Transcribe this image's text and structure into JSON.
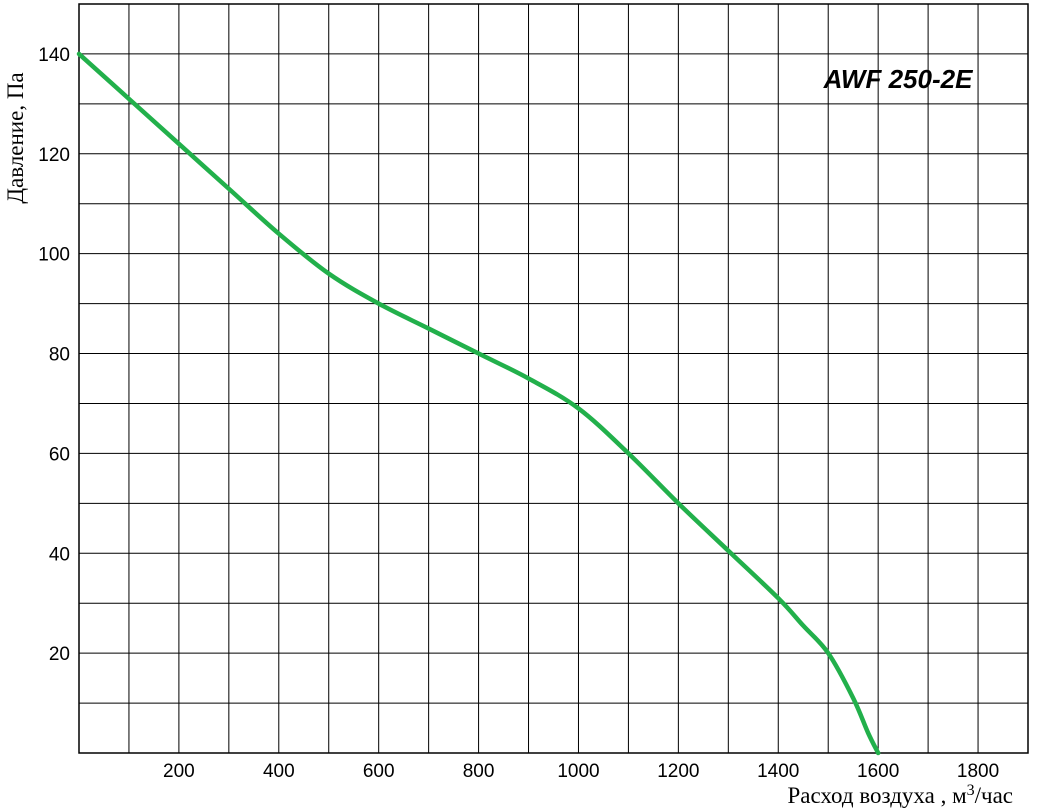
{
  "chart_data": {
    "type": "line",
    "title": "",
    "annotation": "AWF 250-2E",
    "xlabel": "Расход воздуха , м3/час",
    "xlabel_parts": {
      "prefix": "Расход воздуха , м",
      "superscript": "3",
      "suffix": "/час"
    },
    "ylabel": "Давление, Па",
    "xlim": [
      0,
      1900
    ],
    "ylim": [
      0,
      150
    ],
    "x_ticks": [
      200,
      400,
      600,
      800,
      1000,
      1200,
      1400,
      1600,
      1800
    ],
    "y_ticks": [
      20,
      40,
      60,
      80,
      100,
      120,
      140
    ],
    "grid": true,
    "series": [
      {
        "color": "#22b04b",
        "points": [
          {
            "x": 0,
            "y": 140
          },
          {
            "x": 100,
            "y": 131
          },
          {
            "x": 200,
            "y": 122
          },
          {
            "x": 300,
            "y": 113
          },
          {
            "x": 400,
            "y": 104
          },
          {
            "x": 500,
            "y": 96
          },
          {
            "x": 600,
            "y": 90
          },
          {
            "x": 700,
            "y": 85
          },
          {
            "x": 800,
            "y": 80
          },
          {
            "x": 900,
            "y": 75
          },
          {
            "x": 1000,
            "y": 69
          },
          {
            "x": 1100,
            "y": 60
          },
          {
            "x": 1200,
            "y": 50
          },
          {
            "x": 1300,
            "y": 40.5
          },
          {
            "x": 1400,
            "y": 31
          },
          {
            "x": 1450,
            "y": 25.5
          },
          {
            "x": 1500,
            "y": 20
          },
          {
            "x": 1550,
            "y": 11
          },
          {
            "x": 1580,
            "y": 4
          },
          {
            "x": 1600,
            "y": 0
          }
        ]
      }
    ]
  }
}
